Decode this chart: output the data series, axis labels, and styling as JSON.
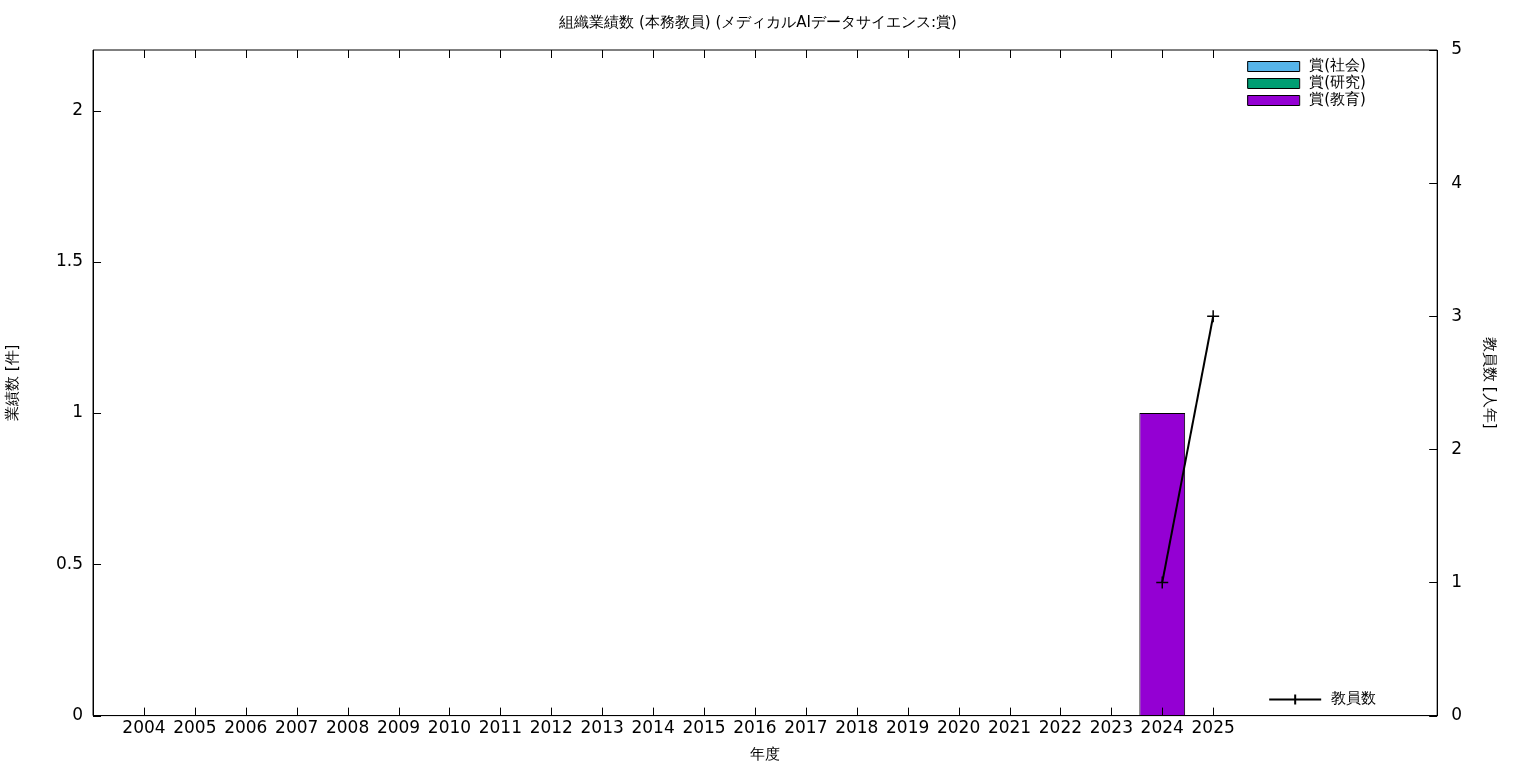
{
  "chart_data": {
    "type": "bar",
    "title": "組織業績数 (本務教員) (メディカルAIデータサイエンス:賞)",
    "xlabel": "年度",
    "ylabel": "業績数 [件]",
    "y2label": "教員数 [人年]",
    "x": [
      2004,
      2005,
      2006,
      2007,
      2008,
      2009,
      2010,
      2011,
      2012,
      2013,
      2014,
      2015,
      2016,
      2017,
      2018,
      2019,
      2020,
      2021,
      2022,
      2023,
      2024,
      2025
    ],
    "xlim": [
      2003,
      2029.4
    ],
    "xticks": [
      2004,
      2005,
      2006,
      2007,
      2008,
      2009,
      2010,
      2011,
      2012,
      2013,
      2014,
      2015,
      2016,
      2017,
      2018,
      2019,
      2020,
      2021,
      2022,
      2023,
      2024,
      2025
    ],
    "ylim": [
      0,
      2.2
    ],
    "yticks": [
      0,
      0.5,
      1,
      1.5,
      2
    ],
    "y2lim": [
      0,
      5
    ],
    "y2ticks": [
      0,
      1,
      2,
      3,
      4,
      5
    ],
    "stacked": true,
    "grid": false,
    "legend": "top right",
    "series": [
      {
        "name": "賞(社会)",
        "color": "#56b4e9",
        "values": [
          0,
          0,
          0,
          0,
          0,
          0,
          0,
          0,
          0,
          0,
          0,
          0,
          0,
          0,
          0,
          0,
          0,
          0,
          0,
          0,
          0,
          0
        ]
      },
      {
        "name": "賞(研究)",
        "color": "#009e73",
        "values": [
          0,
          0,
          0,
          0,
          0,
          0,
          0,
          0,
          0,
          0,
          0,
          0,
          0,
          0,
          0,
          0,
          0,
          0,
          0,
          0,
          0,
          0
        ]
      },
      {
        "name": "賞(教育)",
        "color": "#9400d3",
        "values": [
          0,
          0,
          0,
          0,
          0,
          0,
          0,
          0,
          0,
          0,
          0,
          0,
          0,
          0,
          0,
          0,
          0,
          0,
          0,
          0,
          1,
          0
        ]
      },
      {
        "name": "教員数",
        "type": "line",
        "axis": "y2",
        "color": "#000000",
        "marker": "cross",
        "values": [
          null,
          null,
          null,
          null,
          null,
          null,
          null,
          null,
          null,
          null,
          null,
          null,
          null,
          null,
          null,
          null,
          null,
          null,
          null,
          null,
          1,
          3
        ]
      }
    ]
  }
}
